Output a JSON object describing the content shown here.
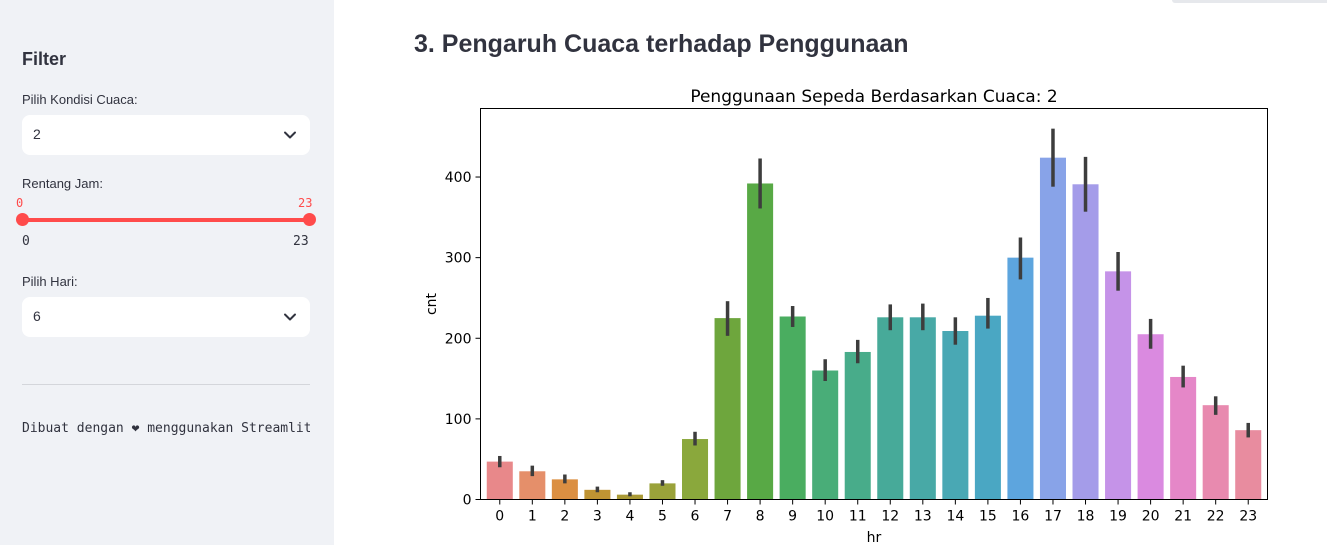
{
  "sidebar": {
    "title": "Filter",
    "weather": {
      "label": "Pilih Kondisi Cuaca:",
      "value": "2"
    },
    "hours": {
      "label": "Rentang Jam:",
      "value_low": "0",
      "value_high": "23",
      "min": "0",
      "max": "23"
    },
    "day": {
      "label": "Pilih Hari:",
      "value": "6"
    },
    "footer": "Dibuat dengan ❤ menggunakan Streamlit"
  },
  "main": {
    "title": "3. Pengaruh Cuaca terhadap Penggunaan"
  },
  "colors": {
    "accent": "#ff4b4b",
    "sidebar_bg": "#f0f2f6"
  },
  "chart_data": {
    "type": "bar",
    "title": "Penggunaan Sepeda Berdasarkan Cuaca: 2",
    "xlabel": "hr",
    "ylabel": "cnt",
    "ylim": [
      0,
      485
    ],
    "yticks": [
      0,
      100,
      200,
      300,
      400
    ],
    "categories": [
      "0",
      "1",
      "2",
      "3",
      "4",
      "5",
      "6",
      "7",
      "8",
      "9",
      "10",
      "11",
      "12",
      "13",
      "14",
      "15",
      "16",
      "17",
      "18",
      "19",
      "20",
      "21",
      "22",
      "23"
    ],
    "values": [
      47,
      35,
      25,
      12,
      6,
      20,
      75,
      225,
      392,
      227,
      160,
      183,
      226,
      226,
      209,
      228,
      300,
      424,
      391,
      283,
      205,
      152,
      117,
      86
    ],
    "error_low": [
      40,
      29,
      20,
      9,
      4,
      17,
      67,
      203,
      361,
      214,
      147,
      169,
      210,
      210,
      192,
      212,
      273,
      388,
      357,
      259,
      187,
      139,
      105,
      77
    ],
    "error_high": [
      54,
      42,
      31,
      16,
      9,
      24,
      84,
      246,
      423,
      240,
      174,
      198,
      242,
      243,
      226,
      250,
      325,
      460,
      425,
      307,
      224,
      166,
      128,
      95
    ],
    "colors": [
      "#e8888a",
      "#e58f6a",
      "#db8f42",
      "#bf9433",
      "#aa9a36",
      "#9aa23a",
      "#8aa83c",
      "#6ea63d",
      "#58a945",
      "#4aad60",
      "#49ad78",
      "#48ac8a",
      "#47aa99",
      "#48a9a6",
      "#49a8b4",
      "#4aa7c3",
      "#5da5de",
      "#88a3e8",
      "#a49ce9",
      "#c593e8",
      "#da8ae0",
      "#e587c8",
      "#e88aaf",
      "#e88c9f"
    ]
  }
}
